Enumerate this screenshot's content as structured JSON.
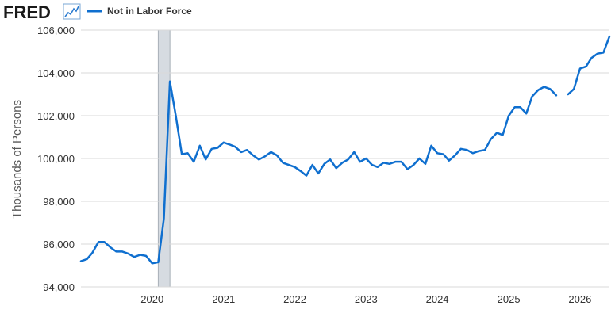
{
  "header": {
    "logo_text": "FRED",
    "logo_icon": "line-chart-icon",
    "legend_label": "Not in Labor Force"
  },
  "colors": {
    "series": "#0f6fcf",
    "grid": "#d9d9d9",
    "recession": "#d6dbe1",
    "recession_border": "#a8b0b8"
  },
  "chart_data": {
    "type": "line",
    "title": "",
    "xlabel": "",
    "ylabel": "Thousands of Persons",
    "ylim": [
      94000,
      106000
    ],
    "xlim": [
      "2019-01-01",
      "2026-06-01"
    ],
    "y_ticks": [
      "94,000",
      "96,000",
      "98,000",
      "100,000",
      "102,000",
      "104,000",
      "106,000"
    ],
    "y_tick_values": [
      94000,
      96000,
      98000,
      100000,
      102000,
      104000,
      106000
    ],
    "x_ticks": [
      "2020",
      "2021",
      "2022",
      "2023",
      "2024",
      "2025",
      "2026"
    ],
    "x_tick_values": [
      "2020-01-01",
      "2021-01-01",
      "2022-01-01",
      "2023-01-01",
      "2024-01-01",
      "2025-01-01",
      "2026-01-01"
    ],
    "grid": true,
    "legend": "top-left",
    "recession": [
      "2020-02-01",
      "2020-04-01"
    ],
    "series": [
      {
        "name": "Not in Labor Force",
        "segments": [
          [
            [
              "2019-01-01",
              95200
            ],
            [
              "2019-02-01",
              95300
            ],
            [
              "2019-03-01",
              95600
            ],
            [
              "2019-04-01",
              96100
            ],
            [
              "2019-05-01",
              96100
            ],
            [
              "2019-06-01",
              95850
            ],
            [
              "2019-07-01",
              95650
            ],
            [
              "2019-08-01",
              95650
            ],
            [
              "2019-09-01",
              95550
            ],
            [
              "2019-10-01",
              95400
            ],
            [
              "2019-11-01",
              95500
            ],
            [
              "2019-12-01",
              95450
            ],
            [
              "2020-01-01",
              95100
            ],
            [
              "2020-02-01",
              95150
            ],
            [
              "2020-03-01",
              97200
            ],
            [
              "2020-04-01",
              103600
            ],
            [
              "2020-05-01",
              102000
            ],
            [
              "2020-06-01",
              100200
            ],
            [
              "2020-07-01",
              100250
            ],
            [
              "2020-08-01",
              99850
            ],
            [
              "2020-09-01",
              100600
            ],
            [
              "2020-10-01",
              99950
            ],
            [
              "2020-11-01",
              100450
            ],
            [
              "2020-12-01",
              100500
            ],
            [
              "2021-01-01",
              100750
            ],
            [
              "2021-02-01",
              100650
            ],
            [
              "2021-03-01",
              100550
            ],
            [
              "2021-04-01",
              100300
            ],
            [
              "2021-05-01",
              100400
            ],
            [
              "2021-06-01",
              100150
            ],
            [
              "2021-07-01",
              99950
            ],
            [
              "2021-08-01",
              100100
            ],
            [
              "2021-09-01",
              100300
            ],
            [
              "2021-10-01",
              100150
            ],
            [
              "2021-11-01",
              99800
            ],
            [
              "2021-12-01",
              99700
            ],
            [
              "2022-01-01",
              99600
            ],
            [
              "2022-02-01",
              99400
            ],
            [
              "2022-03-01",
              99200
            ],
            [
              "2022-04-01",
              99700
            ],
            [
              "2022-05-01",
              99300
            ],
            [
              "2022-06-01",
              99750
            ],
            [
              "2022-07-01",
              99950
            ],
            [
              "2022-08-01",
              99550
            ],
            [
              "2022-09-01",
              99800
            ],
            [
              "2022-10-01",
              99950
            ],
            [
              "2022-11-01",
              100300
            ],
            [
              "2022-12-01",
              99850
            ],
            [
              "2023-01-01",
              100000
            ],
            [
              "2023-02-01",
              99700
            ],
            [
              "2023-03-01",
              99600
            ],
            [
              "2023-04-01",
              99800
            ],
            [
              "2023-05-01",
              99750
            ],
            [
              "2023-06-01",
              99850
            ],
            [
              "2023-07-01",
              99850
            ],
            [
              "2023-08-01",
              99500
            ],
            [
              "2023-09-01",
              99700
            ],
            [
              "2023-10-01",
              100000
            ],
            [
              "2023-11-01",
              99750
            ],
            [
              "2023-12-01",
              100600
            ],
            [
              "2024-01-01",
              100250
            ],
            [
              "2024-02-01",
              100200
            ],
            [
              "2024-03-01",
              99900
            ],
            [
              "2024-04-01",
              100150
            ],
            [
              "2024-05-01",
              100450
            ],
            [
              "2024-06-01",
              100400
            ],
            [
              "2024-07-01",
              100250
            ],
            [
              "2024-08-01",
              100350
            ],
            [
              "2024-09-01",
              100400
            ],
            [
              "2024-10-01",
              100900
            ],
            [
              "2024-11-01",
              101200
            ],
            [
              "2024-12-01",
              101100
            ],
            [
              "2025-01-01",
              102000
            ],
            [
              "2025-02-01",
              102400
            ],
            [
              "2025-03-01",
              102400
            ],
            [
              "2025-04-01",
              102100
            ],
            [
              "2025-05-01",
              102900
            ],
            [
              "2025-06-01",
              103200
            ],
            [
              "2025-07-01",
              103350
            ],
            [
              "2025-08-01",
              103250
            ],
            [
              "2025-09-01",
              102950
            ]
          ],
          [
            [
              "2025-11-01",
              103000
            ],
            [
              "2025-12-01",
              103250
            ],
            [
              "2026-01-01",
              104200
            ],
            [
              "2026-02-01",
              104300
            ],
            [
              "2026-03-01",
              104700
            ],
            [
              "2026-04-01",
              104900
            ],
            [
              "2026-05-01",
              104950
            ],
            [
              "2026-06-01",
              105700
            ]
          ]
        ]
      }
    ]
  }
}
